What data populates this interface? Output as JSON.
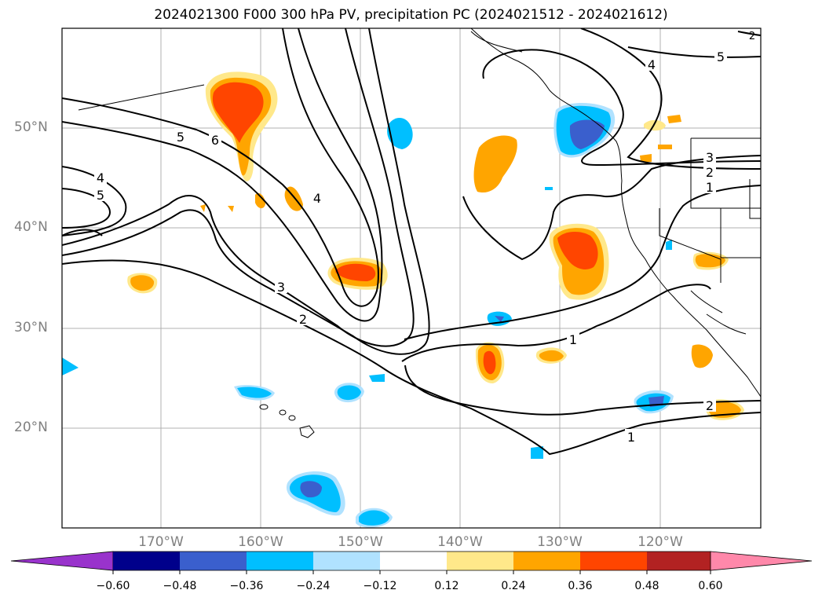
{
  "title": "2024021300 F000 300 hPa PV, precipitation PC (2024021512 - 2024021612)",
  "lat_labels": [
    "50°N",
    "40°N",
    "30°N",
    "20°N"
  ],
  "lon_labels": [
    "170°W",
    "160°W",
    "150°W",
    "140°W",
    "130°W",
    "120°W"
  ],
  "contour_labels": [
    "5",
    "6",
    "4",
    "5",
    "4",
    "3",
    "2",
    "1",
    "1",
    "2",
    "4",
    "5",
    "3",
    "2",
    "1",
    "2"
  ],
  "colorbar": {
    "ticks": [
      "−0.60",
      "−0.48",
      "−0.36",
      "−0.24",
      "−0.12",
      "0.12",
      "0.24",
      "0.36",
      "0.48",
      "0.60"
    ],
    "colors": [
      "#9933cc",
      "#00008b",
      "#3a5fcd",
      "#00bfff",
      "#b0e2ff",
      "#ffffff",
      "#ffe88a",
      "#ffa500",
      "#ff4500",
      "#b22222",
      "#ff88aa"
    ]
  }
}
